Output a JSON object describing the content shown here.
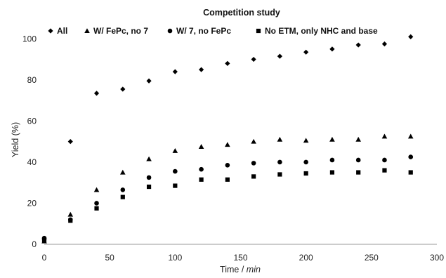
{
  "chart_data": {
    "type": "scatter",
    "title": "Competition study",
    "xlabel": "Time / ",
    "xlabel_unit": "min",
    "ylabel": "Yield (%)",
    "xlim": [
      0,
      300
    ],
    "ylim": [
      0,
      110
    ],
    "x_ticks": [
      0,
      50,
      100,
      150,
      200,
      250,
      300
    ],
    "y_ticks": [
      0,
      20,
      40,
      60,
      80,
      100
    ],
    "grid": false,
    "legend_position": "top",
    "series": [
      {
        "name": "All",
        "marker": "diamond",
        "color": "#000000",
        "points": [
          [
            0,
            2.5
          ],
          [
            20,
            50
          ],
          [
            40,
            73.5
          ],
          [
            60,
            75.5
          ],
          [
            80,
            79.5
          ],
          [
            100,
            84
          ],
          [
            120,
            85
          ],
          [
            140,
            88
          ],
          [
            160,
            90
          ],
          [
            180,
            91.5
          ],
          [
            200,
            93.5
          ],
          [
            220,
            95
          ],
          [
            240,
            97
          ],
          [
            260,
            97.5
          ],
          [
            280,
            101
          ]
        ]
      },
      {
        "name": "W/ FePc, no 7",
        "marker": "triangle",
        "color": "#000000",
        "points": [
          [
            0,
            1.5
          ],
          [
            20,
            14.5
          ],
          [
            40,
            26.5
          ],
          [
            60,
            35
          ],
          [
            80,
            41.5
          ],
          [
            100,
            45.5
          ],
          [
            120,
            47.5
          ],
          [
            140,
            48.5
          ],
          [
            160,
            50
          ],
          [
            180,
            51
          ],
          [
            200,
            50.5
          ],
          [
            220,
            51
          ],
          [
            240,
            51
          ],
          [
            260,
            52.5
          ],
          [
            280,
            52.5
          ]
        ]
      },
      {
        "name": "W/ 7, no FePc",
        "marker": "circle",
        "color": "#000000",
        "points": [
          [
            0,
            3
          ],
          [
            20,
            12
          ],
          [
            40,
            20
          ],
          [
            60,
            26.5
          ],
          [
            80,
            32.5
          ],
          [
            100,
            35.5
          ],
          [
            120,
            36.5
          ],
          [
            140,
            38.5
          ],
          [
            160,
            39.5
          ],
          [
            180,
            40
          ],
          [
            200,
            40
          ],
          [
            220,
            41
          ],
          [
            240,
            41
          ],
          [
            260,
            41
          ],
          [
            280,
            42.5
          ]
        ]
      },
      {
        "name": "No ETM, only NHC and base",
        "marker": "square",
        "color": "#000000",
        "points": [
          [
            0,
            2
          ],
          [
            20,
            11.5
          ],
          [
            40,
            17.5
          ],
          [
            60,
            23
          ],
          [
            80,
            28
          ],
          [
            100,
            28.5
          ],
          [
            120,
            31.5
          ],
          [
            140,
            31.5
          ],
          [
            160,
            33
          ],
          [
            180,
            34
          ],
          [
            200,
            34.5
          ],
          [
            220,
            35
          ],
          [
            240,
            35
          ],
          [
            260,
            36
          ],
          [
            280,
            35
          ]
        ]
      }
    ]
  }
}
